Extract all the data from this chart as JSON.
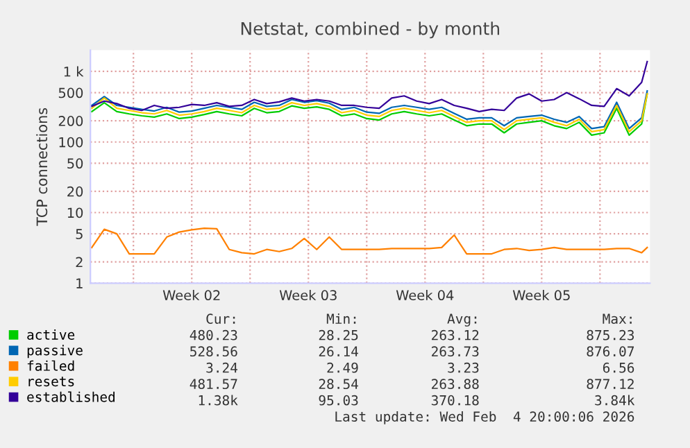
{
  "chart_data": {
    "type": "line",
    "title": "Netstat, combined - by month",
    "ylabel": "TCP connections",
    "log": true,
    "grid": true,
    "legend": "bottom",
    "ylim": [
      1,
      2000
    ],
    "yticks": [
      1,
      2,
      5,
      10,
      20,
      50,
      100,
      200,
      500,
      {
        "value": 1000,
        "label": "1 k"
      }
    ],
    "xlim": [
      "2026-01-02T10:00",
      "2026-02-05T00:00"
    ],
    "xticks": [
      {
        "value": "2026-01-05",
        "label": null
      },
      {
        "value": "2026-01-08T12:00",
        "label": "Week 02"
      },
      {
        "value": "2026-01-12",
        "label": null
      },
      {
        "value": "2026-01-15T12:00",
        "label": "Week 03"
      },
      {
        "value": "2026-01-19",
        "label": null
      },
      {
        "value": "2026-01-22T12:00",
        "label": "Week 04"
      },
      {
        "value": "2026-01-26",
        "label": null
      },
      {
        "value": "2026-01-29T12:00",
        "label": "Week 05"
      },
      {
        "value": "2026-02-02",
        "label": null
      }
    ],
    "x": [
      "2026-01-02T12:00",
      "2026-01-03T06:00",
      "2026-01-04T00:00",
      "2026-01-04T18:00",
      "2026-01-05T12:00",
      "2026-01-06T06:00",
      "2026-01-07T00:00",
      "2026-01-07T18:00",
      "2026-01-08T12:00",
      "2026-01-09T06:00",
      "2026-01-10T00:00",
      "2026-01-10T18:00",
      "2026-01-11T12:00",
      "2026-01-12T06:00",
      "2026-01-13T00:00",
      "2026-01-13T18:00",
      "2026-01-14T12:00",
      "2026-01-15T06:00",
      "2026-01-16T00:00",
      "2026-01-16T18:00",
      "2026-01-17T12:00",
      "2026-01-18T06:00",
      "2026-01-19T00:00",
      "2026-01-19T18:00",
      "2026-01-20T12:00",
      "2026-01-21T06:00",
      "2026-01-22T00:00",
      "2026-01-22T18:00",
      "2026-01-23T12:00",
      "2026-01-24T06:00",
      "2026-01-25T00:00",
      "2026-01-25T18:00",
      "2026-01-26T12:00",
      "2026-01-27T06:00",
      "2026-01-28T00:00",
      "2026-01-28T18:00",
      "2026-01-29T12:00",
      "2026-01-30T06:00",
      "2026-01-31T00:00",
      "2026-01-31T18:00",
      "2026-02-01T12:00",
      "2026-02-02T06:00",
      "2026-02-03T00:00",
      "2026-02-03T18:00",
      "2026-02-04T12:00",
      "2026-02-04T20:00"
    ],
    "series": [
      {
        "name": "active",
        "color": "#00cc00",
        "values": [
          270,
          360,
          270,
          250,
          235,
          225,
          250,
          215,
          225,
          245,
          270,
          250,
          235,
          300,
          260,
          270,
          325,
          300,
          315,
          290,
          235,
          250,
          215,
          205,
          250,
          270,
          250,
          235,
          250,
          205,
          170,
          180,
          180,
          135,
          180,
          190,
          200,
          170,
          155,
          190,
          125,
          135,
          300,
          125,
          180,
          480
        ]
      },
      {
        "name": "passive",
        "color": "#0066b3",
        "values": [
          330,
          440,
          330,
          310,
          290,
          275,
          310,
          265,
          275,
          300,
          330,
          310,
          290,
          365,
          320,
          330,
          400,
          365,
          385,
          355,
          290,
          310,
          265,
          255,
          310,
          330,
          310,
          290,
          310,
          255,
          210,
          220,
          220,
          170,
          220,
          230,
          240,
          210,
          190,
          230,
          155,
          165,
          365,
          155,
          220,
          530
        ]
      },
      {
        "name": "failed",
        "color": "#ff8000",
        "values": [
          3.2,
          5.8,
          5.0,
          2.6,
          2.6,
          2.6,
          4.5,
          5.3,
          5.7,
          6.0,
          5.9,
          3.0,
          2.7,
          2.6,
          3.0,
          2.8,
          3.1,
          4.3,
          3.0,
          4.5,
          3.0,
          3.0,
          3.0,
          3.0,
          3.1,
          3.1,
          3.1,
          3.1,
          3.2,
          4.8,
          2.6,
          2.6,
          2.6,
          3.0,
          3.1,
          2.9,
          3.0,
          3.2,
          3.0,
          3.0,
          3.0,
          3.0,
          3.1,
          3.1,
          2.7,
          3.2
        ]
      },
      {
        "name": "resets",
        "color": "#ffcc00",
        "values": [
          300,
          420,
          300,
          280,
          260,
          250,
          280,
          240,
          250,
          270,
          300,
          280,
          260,
          330,
          290,
          300,
          360,
          330,
          350,
          320,
          260,
          280,
          240,
          230,
          280,
          300,
          280,
          260,
          280,
          230,
          190,
          200,
          200,
          150,
          200,
          210,
          220,
          190,
          170,
          210,
          140,
          150,
          330,
          140,
          200,
          480
        ]
      },
      {
        "name": "established",
        "color": "#330099",
        "values": [
          320,
          380,
          350,
          300,
          280,
          330,
          300,
          310,
          340,
          330,
          360,
          320,
          330,
          400,
          350,
          370,
          420,
          380,
          400,
          380,
          330,
          330,
          310,
          300,
          420,
          450,
          380,
          350,
          400,
          330,
          300,
          270,
          290,
          280,
          420,
          480,
          380,
          400,
          500,
          410,
          330,
          320,
          570,
          450,
          700,
          1380
        ]
      }
    ],
    "annotations": [
      "Cur:",
      "Min:",
      "Avg:",
      "Max:",
      "480.23",
      "28.25",
      "263.12",
      "875.23",
      "528.56",
      "26.14",
      "263.73",
      "876.07",
      "3.24",
      "2.49",
      "3.23",
      "6.56",
      "481.57",
      "28.54",
      "263.88",
      "877.12",
      "1.38k",
      "95.03",
      "370.18",
      "3.84k",
      "Last update: Wed Feb  4 20:00:06 2026"
    ]
  }
}
